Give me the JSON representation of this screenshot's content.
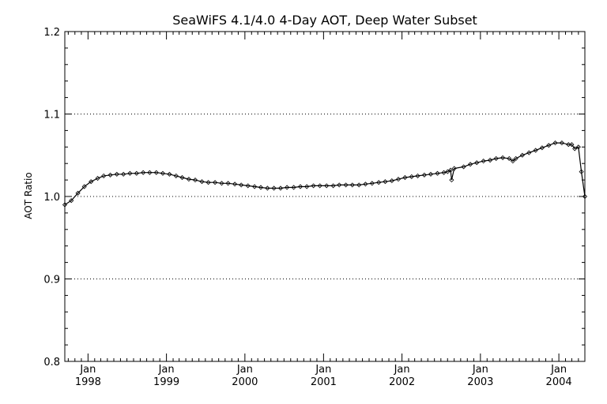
{
  "chart_data": {
    "type": "line",
    "title": "SeaWiFS 4.1/4.0 4-Day AOT, Deep Water Subset",
    "xlabel": "",
    "ylabel": "AOT Ratio",
    "ylim": [
      0.8,
      1.2
    ],
    "xlim": [
      "1997-09-15",
      "2004-05-01"
    ],
    "yticks": [
      "0.8",
      "0.9",
      "1.0",
      "1.1",
      "1.2"
    ],
    "y_gridlines": [
      0.9,
      1.0,
      1.1
    ],
    "xticks": [
      {
        "date": "1998-01-01",
        "month": "Jan",
        "year": "1998"
      },
      {
        "date": "1999-01-01",
        "month": "Jan",
        "year": "1999"
      },
      {
        "date": "2000-01-01",
        "month": "Jan",
        "year": "2000"
      },
      {
        "date": "2001-01-01",
        "month": "Jan",
        "year": "2001"
      },
      {
        "date": "2002-01-01",
        "month": "Jan",
        "year": "2002"
      },
      {
        "date": "2003-01-01",
        "month": "Jan",
        "year": "2003"
      },
      {
        "date": "2004-01-01",
        "month": "Jan",
        "year": "2004"
      }
    ],
    "series": [
      {
        "x": [
          "1997-09-15",
          "1997-10-15",
          "1997-11-15",
          "1997-12-15",
          "1998-01-15",
          "1998-02-15",
          "1998-03-15",
          "1998-04-15",
          "1998-05-15",
          "1998-06-15",
          "1998-07-15",
          "1998-08-15",
          "1998-09-15",
          "1998-10-15",
          "1998-11-15",
          "1998-12-15",
          "1999-01-15",
          "1999-02-15",
          "1999-03-15",
          "1999-04-15",
          "1999-05-15",
          "1999-06-15",
          "1999-07-15",
          "1999-08-15",
          "1999-09-15",
          "1999-10-15",
          "1999-11-15",
          "1999-12-15",
          "2000-01-15",
          "2000-02-15",
          "2000-03-15",
          "2000-04-15",
          "2000-05-15",
          "2000-06-15",
          "2000-07-15",
          "2000-08-15",
          "2000-09-15",
          "2000-10-15",
          "2000-11-15",
          "2000-12-15",
          "2001-01-15",
          "2001-02-15",
          "2001-03-15",
          "2001-04-15",
          "2001-05-15",
          "2001-06-15",
          "2001-07-15",
          "2001-08-15",
          "2001-09-15",
          "2001-10-15",
          "2001-11-15",
          "2001-12-15",
          "2002-01-15",
          "2002-02-15",
          "2002-03-15",
          "2002-04-15",
          "2002-05-15",
          "2002-06-15",
          "2002-07-15",
          "2002-08-01",
          "2002-08-15",
          "2002-08-20",
          "2002-09-01",
          "2002-10-15",
          "2002-11-15",
          "2002-12-15",
          "2003-01-15",
          "2003-02-15",
          "2003-03-15",
          "2003-04-15",
          "2003-05-15",
          "2003-06-01",
          "2003-06-15",
          "2003-07-15",
          "2003-08-15",
          "2003-09-15",
          "2003-10-15",
          "2003-11-15",
          "2003-12-15",
          "2004-01-15",
          "2004-02-15",
          "2004-03-01",
          "2004-03-15",
          "2004-04-01",
          "2004-04-15",
          "2004-05-01"
        ],
        "y": [
          0.99,
          0.995,
          1.004,
          1.012,
          1.018,
          1.022,
          1.025,
          1.026,
          1.027,
          1.027,
          1.028,
          1.028,
          1.029,
          1.029,
          1.029,
          1.028,
          1.027,
          1.025,
          1.023,
          1.021,
          1.02,
          1.018,
          1.017,
          1.017,
          1.016,
          1.016,
          1.015,
          1.014,
          1.013,
          1.012,
          1.011,
          1.01,
          1.01,
          1.01,
          1.011,
          1.011,
          1.012,
          1.012,
          1.013,
          1.013,
          1.013,
          1.013,
          1.014,
          1.014,
          1.014,
          1.014,
          1.015,
          1.016,
          1.017,
          1.018,
          1.019,
          1.021,
          1.023,
          1.024,
          1.025,
          1.026,
          1.027,
          1.028,
          1.029,
          1.03,
          1.032,
          1.02,
          1.034,
          1.036,
          1.039,
          1.041,
          1.043,
          1.044,
          1.046,
          1.047,
          1.046,
          1.043,
          1.046,
          1.05,
          1.053,
          1.056,
          1.059,
          1.062,
          1.065,
          1.065,
          1.063,
          1.063,
          1.058,
          1.06,
          1.03,
          1.0
        ]
      }
    ]
  }
}
